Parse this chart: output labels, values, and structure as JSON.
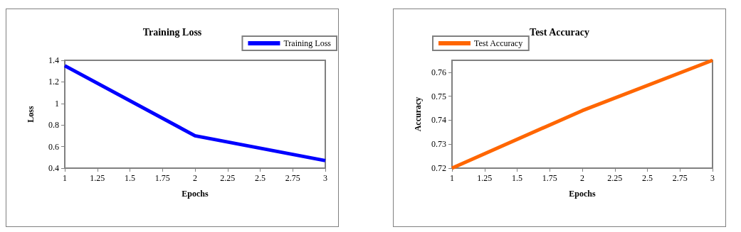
{
  "chart_data": [
    {
      "type": "line",
      "title": "Training Loss",
      "xlabel": "Epochs",
      "ylabel": "Loss",
      "x": [
        1,
        2,
        3
      ],
      "series": [
        {
          "name": "Training Loss",
          "color": "#0000ff",
          "values": [
            1.35,
            0.7,
            0.47
          ]
        }
      ],
      "xlim": [
        1,
        3
      ],
      "xticks": [
        1,
        1.25,
        1.5,
        1.75,
        2,
        2.25,
        2.5,
        2.75,
        3
      ],
      "ylim": [
        0.4,
        1.4
      ],
      "yticks": [
        0.4,
        0.6,
        0.8,
        1,
        1.2,
        1.4
      ],
      "grid": false,
      "legend": "top right",
      "marker": "none",
      "line_style": "solid"
    },
    {
      "type": "line",
      "title": "Test Accuracy",
      "xlabel": "Epochs",
      "ylabel": "Accuracy",
      "x": [
        1,
        2,
        3
      ],
      "series": [
        {
          "name": "Test Accuracy",
          "color": "#ff6600",
          "values": [
            0.72,
            0.744,
            0.765
          ]
        }
      ],
      "xlim": [
        1,
        3
      ],
      "xticks": [
        1,
        1.25,
        1.5,
        1.75,
        2,
        2.25,
        2.5,
        2.75,
        3
      ],
      "ylim": [
        0.72,
        0.765
      ],
      "yticks": [
        0.72,
        0.73,
        0.74,
        0.75,
        0.76
      ],
      "grid": false,
      "legend": "top left",
      "marker": "none",
      "line_style": "solid"
    }
  ]
}
